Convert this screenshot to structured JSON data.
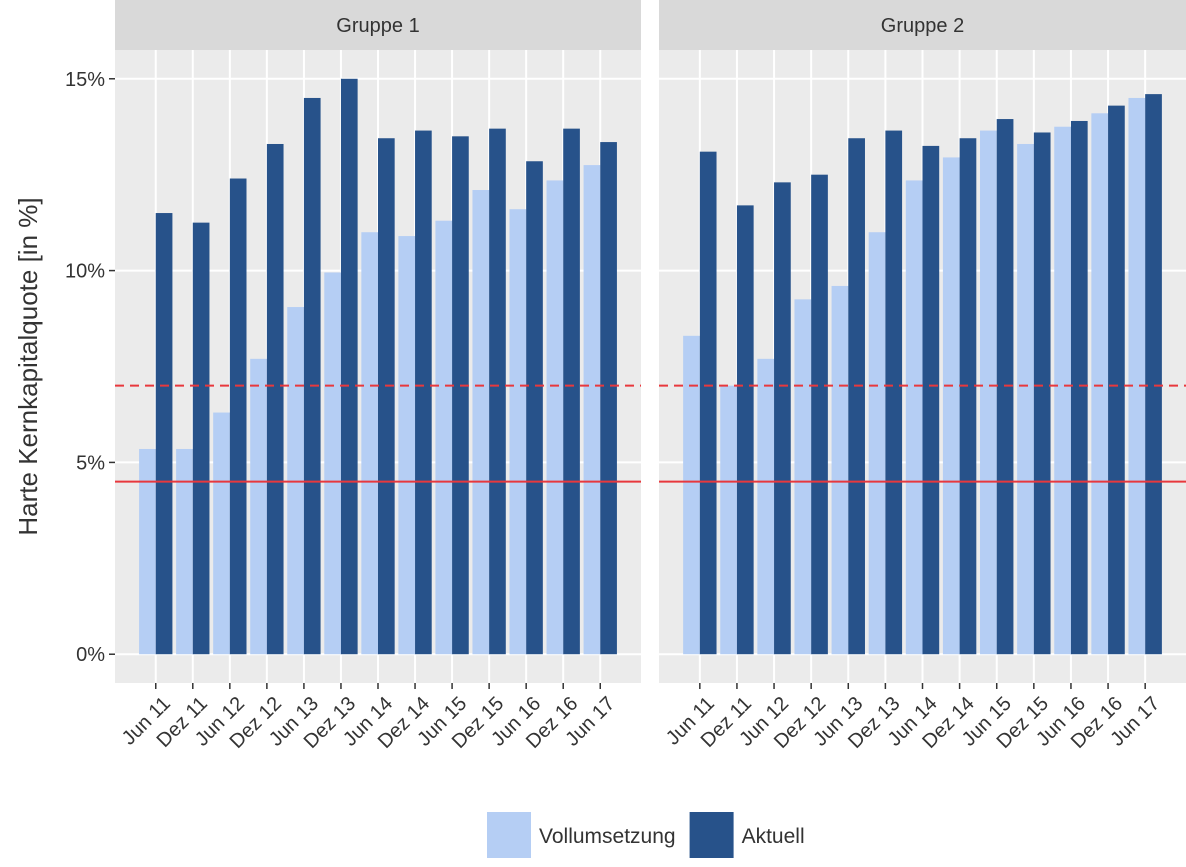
{
  "chart_data": [
    {
      "type": "bar",
      "title": "Gruppe 1",
      "ylabel": "Harte Kernkapitalquote [in %]",
      "categories": [
        "Jun 11",
        "Dez 11",
        "Jun 12",
        "Dez 12",
        "Jun 13",
        "Dez 13",
        "Jun 14",
        "Dez 14",
        "Jun 15",
        "Dez 15",
        "Jun 16",
        "Dez 16",
        "Jun 17"
      ],
      "series": [
        {
          "name": "Vollumsetzung",
          "color": "#b5cef4",
          "values": [
            5.35,
            5.35,
            6.3,
            7.7,
            9.05,
            9.95,
            11.0,
            10.9,
            11.3,
            12.1,
            11.6,
            12.35,
            12.75
          ]
        },
        {
          "name": "Aktuell",
          "color": "#27528a",
          "values": [
            11.5,
            11.25,
            12.4,
            13.3,
            14.5,
            15.0,
            13.45,
            13.65,
            13.5,
            13.7,
            12.85,
            13.7,
            13.35
          ]
        }
      ],
      "ylim": [
        -0.75,
        15.75
      ],
      "yticks": [
        {
          "value": 0,
          "label": "0%"
        },
        {
          "value": 5,
          "label": "5%"
        },
        {
          "value": 10,
          "label": "10%"
        },
        {
          "value": 15,
          "label": "15%"
        }
      ],
      "grid": true,
      "reference_lines": [
        {
          "value": 7,
          "style": "dashed",
          "color": "#e8383d"
        },
        {
          "value": 4.5,
          "style": "solid",
          "color": "#e8383d"
        }
      ],
      "legend": "bottom"
    },
    {
      "type": "bar",
      "title": "Gruppe 2",
      "categories": [
        "Jun 11",
        "Dez 11",
        "Jun 12",
        "Dez 12",
        "Jun 13",
        "Dez 13",
        "Jun 14",
        "Dez 14",
        "Jun 15",
        "Dez 15",
        "Jun 16",
        "Dez 16",
        "Jun 17"
      ],
      "series": [
        {
          "name": "Vollumsetzung",
          "color": "#b5cef4",
          "values": [
            8.3,
            7.0,
            7.7,
            9.25,
            9.6,
            11.0,
            12.35,
            12.95,
            13.65,
            13.3,
            13.75,
            14.1,
            14.5
          ]
        },
        {
          "name": "Aktuell",
          "color": "#27528a",
          "values": [
            13.1,
            11.7,
            12.3,
            12.5,
            13.45,
            13.65,
            13.25,
            13.45,
            13.95,
            13.6,
            13.9,
            14.3,
            14.6
          ]
        }
      ],
      "ylim": [
        -0.75,
        15.75
      ],
      "yticks": [
        0,
        5,
        10,
        15
      ],
      "grid": true,
      "reference_lines": [
        {
          "value": 7,
          "style": "dashed",
          "color": "#e8383d"
        },
        {
          "value": 4.5,
          "style": "solid",
          "color": "#e8383d"
        }
      ]
    }
  ]
}
